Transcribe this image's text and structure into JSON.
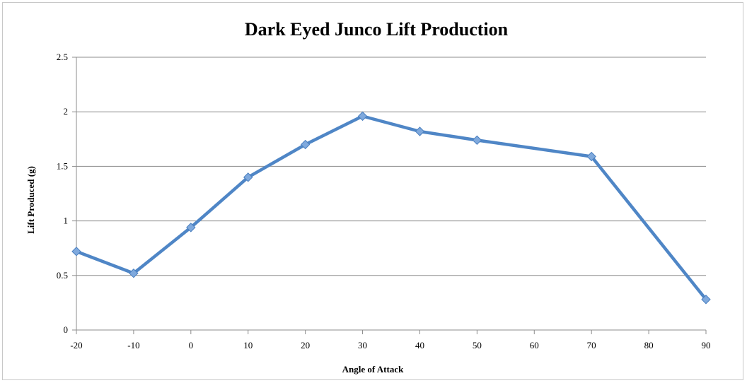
{
  "chart_data": {
    "type": "line",
    "title": "Dark Eyed Junco Lift Production",
    "xlabel": "Angle of Attack",
    "ylabel": "Lift Produced (g)",
    "x_ticks": [
      -20,
      -10,
      0,
      10,
      20,
      30,
      40,
      50,
      60,
      70,
      80,
      90
    ],
    "y_ticks": [
      0,
      0.5,
      1,
      1.5,
      2,
      2.5
    ],
    "xlim": [
      -20,
      90
    ],
    "ylim": [
      0,
      2.5
    ],
    "grid": "horizontal",
    "legend": "none",
    "series": [
      {
        "color": "#4f86c6",
        "marker": "diamond",
        "points": [
          {
            "x": -20,
            "y": 0.72
          },
          {
            "x": -10,
            "y": 0.52
          },
          {
            "x": 0,
            "y": 0.94
          },
          {
            "x": 10,
            "y": 1.4
          },
          {
            "x": 20,
            "y": 1.7
          },
          {
            "x": 30,
            "y": 1.96
          },
          {
            "x": 40,
            "y": 1.82
          },
          {
            "x": 50,
            "y": 1.74
          },
          {
            "x": 70,
            "y": 1.59
          },
          {
            "x": 90,
            "y": 0.28
          }
        ]
      }
    ]
  }
}
